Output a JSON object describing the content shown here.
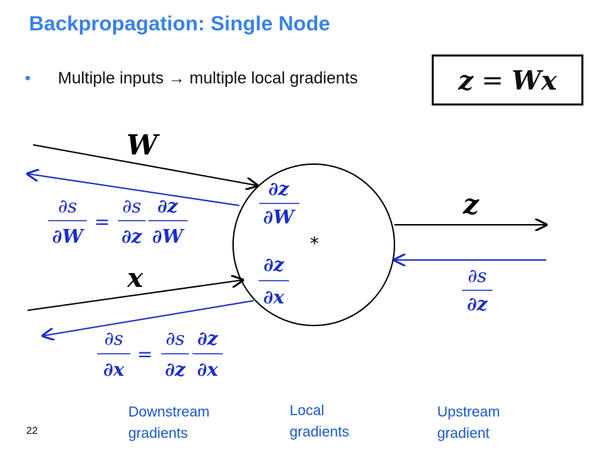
{
  "slide": {
    "title": "Backpropagation: Single Node",
    "bullet": "Multiple inputs → multiple local gradients",
    "bullet_marker": "•",
    "equation": {
      "lhs": "z",
      "op": "=",
      "rhs": "Wx"
    },
    "page_number": "22"
  },
  "diagram": {
    "input_labels": {
      "W": "W",
      "x": "x"
    },
    "output_label": "z",
    "node_op": "*",
    "local_gradients": {
      "wrt_W": {
        "num": "∂z",
        "den": "∂W"
      },
      "wrt_x": {
        "num": "∂z",
        "den": "∂x"
      }
    },
    "upstream_gradient": {
      "num": "∂s",
      "den": "∂z"
    },
    "downstream_W": {
      "lhs": {
        "num": "∂s",
        "den": "∂W"
      },
      "eq": "=",
      "f1": {
        "num": "∂s",
        "den": "∂z"
      },
      "f2": {
        "num": "∂z",
        "den": "∂W"
      }
    },
    "downstream_x": {
      "lhs": {
        "num": "∂s",
        "den": "∂x"
      },
      "eq": "=",
      "f1": {
        "num": "∂s",
        "den": "∂z"
      },
      "f2": {
        "num": "∂z",
        "den": "∂x"
      }
    }
  },
  "captions": {
    "downstream": [
      "Downstream",
      "gradients"
    ],
    "local": [
      "Local",
      "gradients"
    ],
    "upstream": [
      "Upstream",
      "gradient"
    ]
  },
  "colors": {
    "title": "#3b82e6",
    "gradient": "#1c2fc4",
    "caption": "#1c58c9",
    "forward": "#000000"
  }
}
